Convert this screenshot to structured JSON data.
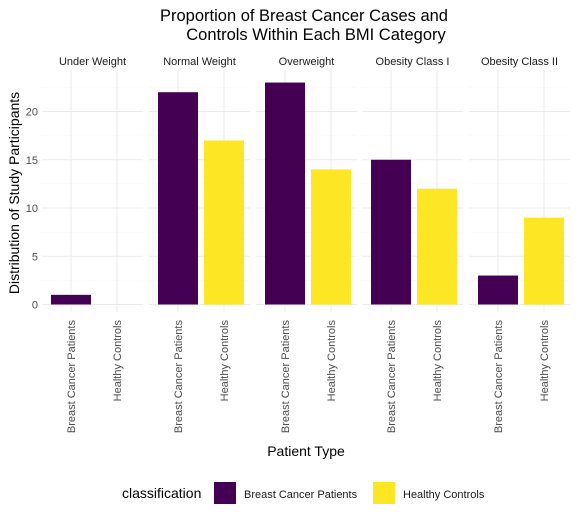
{
  "chart_data": {
    "type": "bar",
    "title": [
      "Proportion of Breast Cancer Cases and",
      "Controls Within Each BMI Category"
    ],
    "xlabel": "Patient Type",
    "ylabel": "Distribution of Study Participants",
    "ylim": [
      0,
      24
    ],
    "yticks": [
      0,
      5,
      10,
      15,
      20
    ],
    "grid": true,
    "legend_position": "bottom",
    "legend_title": "classification",
    "categories": [
      "Breast Cancer Patients",
      "Healthy Controls"
    ],
    "series_colors": {
      "Breast Cancer Patients": "#440154",
      "Healthy Controls": "#FDE725"
    },
    "facets": [
      {
        "label": "Under Weight",
        "values": [
          1,
          0
        ]
      },
      {
        "label": "Normal Weight",
        "values": [
          22,
          17
        ]
      },
      {
        "label": "Overweight",
        "values": [
          23,
          14
        ]
      },
      {
        "label": "Obesity Class  I",
        "values": [
          15,
          12
        ]
      },
      {
        "label": "Obesity Class II",
        "values": [
          3,
          9
        ]
      }
    ]
  }
}
